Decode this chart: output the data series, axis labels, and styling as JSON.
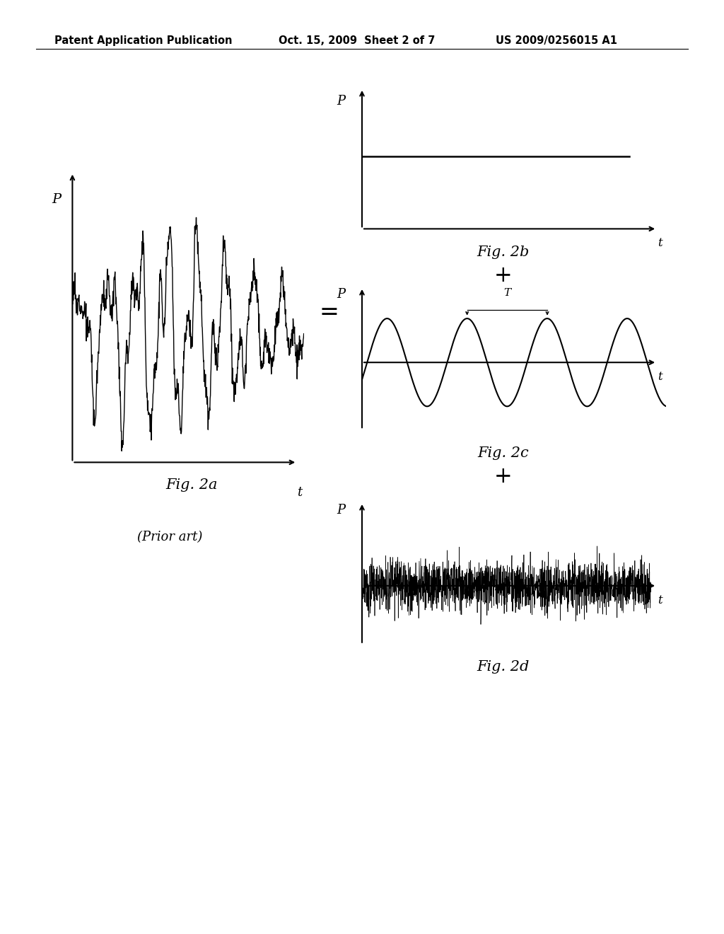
{
  "background_color": "#ffffff",
  "header_left": "Patent Application Publication",
  "header_center": "Oct. 15, 2009  Sheet 2 of 7",
  "header_right": "US 2009/0256015 A1",
  "header_fontsize": 10.5,
  "fig2a_label": "Fig. 2a",
  "fig2b_label": "Fig. 2b",
  "fig2c_label": "Fig. 2c",
  "fig2d_label": "Fig. 2d",
  "prior_art_label": "(Prior art)",
  "equals_sign": "=",
  "plus_sign": "+",
  "axis_label_P": "P",
  "axis_label_t": "t",
  "label_T": "T"
}
